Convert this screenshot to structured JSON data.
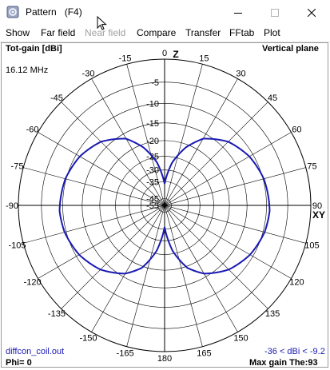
{
  "window": {
    "title": "Pattern   (F4)",
    "icon": "app-pattern-icon",
    "buttons": {
      "minimize": "minimize-icon",
      "maximize": "maximize-icon",
      "close": "close-icon"
    }
  },
  "menu": {
    "items": [
      {
        "label": "Show",
        "enabled": true
      },
      {
        "label": "Far field",
        "enabled": true
      },
      {
        "label": "Near field",
        "enabled": false
      },
      {
        "label": "Compare",
        "enabled": true
      },
      {
        "label": "Transfer",
        "enabled": true
      },
      {
        "label": "FFtab",
        "enabled": true
      },
      {
        "label": "Plot",
        "enabled": true
      }
    ]
  },
  "plot": {
    "top_left_label": "Tot-gain [dBi]",
    "frequency": "16.12 MHz",
    "top_right_label": "Vertical plane",
    "axis_z_label": "Z",
    "axis_xy_label": "XY",
    "bottom_left_file": "diffcon_coil.out",
    "phi_label": "Phi= 0",
    "range_label": "-36 < dBi < -9.2",
    "max_gain_label": "Max gain The:93",
    "colors": {
      "pattern": "#1a1ab4",
      "grid": "#000000",
      "text": "#000000"
    }
  },
  "chart_data": {
    "type": "polar",
    "plane": "Vertical plane",
    "unit": "dBi",
    "angle_labels": [
      "0",
      "15",
      "30",
      "45",
      "60",
      "75",
      "90",
      "105",
      "120",
      "135",
      "150",
      "165",
      "180",
      "-165",
      "-150",
      "-135",
      "-120",
      "-105",
      "-90",
      "-75",
      "-60",
      "-45",
      "-30",
      "-15"
    ],
    "radial_ticks": [
      "-5",
      "-10",
      "-15",
      "-20",
      "-25",
      "-30",
      "-35",
      "-45",
      "-55"
    ],
    "gain_range": [
      -36,
      -9.2
    ],
    "max_gain_theta": 93,
    "series": [
      {
        "pattern": "figure-eight, nulls at 0 and 180",
        "points_theta_deg_gain_dbi": [
          [
            0,
            -36
          ],
          [
            10,
            -27
          ],
          [
            20,
            -21
          ],
          [
            30,
            -16.5
          ],
          [
            45,
            -13
          ],
          [
            60,
            -11
          ],
          [
            75,
            -9.8
          ],
          [
            93,
            -9.2
          ],
          [
            105,
            -9.6
          ],
          [
            120,
            -10.8
          ],
          [
            135,
            -12.8
          ],
          [
            150,
            -16
          ],
          [
            160,
            -19.5
          ],
          [
            170,
            -26
          ],
          [
            180,
            -36
          ]
        ]
      }
    ]
  }
}
